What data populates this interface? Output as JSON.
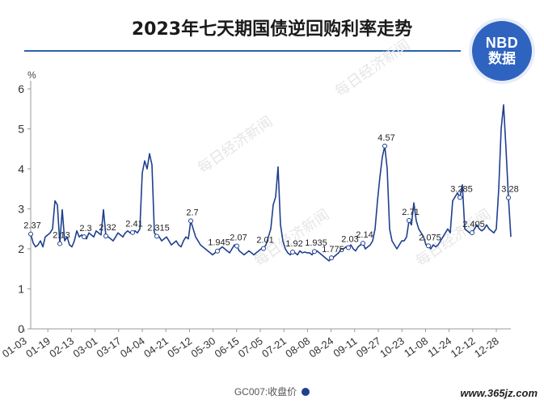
{
  "title": "2023年七天期国债逆回购利率走势",
  "logo": {
    "line1": "NBD",
    "line2": "数据"
  },
  "legend_label": "GC007:收盘价",
  "credit": "www.365jz.com",
  "watermark": "每日经济新闻",
  "colors": {
    "line": "#1f3f8f",
    "axis": "#9a9a9a",
    "title_rule": "#2a63a8"
  },
  "chart_data": {
    "type": "line",
    "title": "2023年七天期国债逆回购利率走势",
    "ylabel": "%",
    "xlabel": "",
    "ylim": [
      0,
      6
    ],
    "yticks": [
      0,
      1,
      2,
      3,
      4,
      5,
      6
    ],
    "grid": false,
    "legend_position": "bottom",
    "xticks": [
      "01-03",
      "01-19",
      "02-13",
      "03-01",
      "03-17",
      "04-04",
      "04-21",
      "05-12",
      "05-30",
      "06-15",
      "07-05",
      "07-21",
      "08-08",
      "08-24",
      "09-11",
      "09-27",
      "10-23",
      "11-08",
      "11-24",
      "12-12",
      "12-28"
    ],
    "series": [
      {
        "name": "GC007:收盘价",
        "values": [
          2.37,
          2.15,
          2.05,
          2.1,
          2.2,
          2.05,
          2.3,
          2.35,
          2.4,
          2.5,
          3.2,
          3.1,
          2.13,
          2.98,
          2.2,
          2.3,
          2.1,
          2.05,
          2.2,
          2.45,
          2.3,
          2.35,
          2.3,
          2.25,
          2.4,
          2.35,
          2.3,
          2.45,
          2.4,
          2.35,
          2.98,
          2.32,
          2.3,
          2.25,
          2.2,
          2.3,
          2.4,
          2.35,
          2.3,
          2.4,
          2.45,
          2.4,
          2.41,
          2.45,
          2.4,
          2.5,
          3.9,
          4.2,
          4.0,
          4.38,
          4.1,
          2.4,
          2.315,
          2.3,
          2.2,
          2.25,
          2.3,
          2.2,
          2.1,
          2.15,
          2.2,
          2.1,
          2.05,
          2.2,
          2.3,
          2.25,
          2.7,
          2.5,
          2.3,
          2.2,
          2.1,
          2.05,
          2.0,
          1.95,
          1.9,
          1.85,
          1.9,
          1.945,
          2.0,
          2.05,
          2.0,
          1.95,
          1.9,
          2.0,
          2.1,
          2.07,
          1.95,
          1.9,
          1.85,
          1.9,
          1.95,
          1.9,
          1.85,
          1.9,
          1.95,
          2.0,
          2.01,
          2.1,
          2.3,
          2.5,
          3.1,
          3.3,
          4.05,
          2.6,
          2.2,
          2.0,
          1.9,
          1.85,
          1.92,
          1.9,
          1.85,
          1.95,
          1.9,
          1.92,
          1.9,
          1.9,
          1.85,
          1.935,
          1.95,
          1.9,
          1.85,
          1.8,
          1.75,
          1.7,
          1.775,
          1.8,
          1.85,
          1.9,
          2.0,
          2.0,
          2.05,
          2.03,
          2.1,
          2.0,
          1.95,
          2.05,
          2.1,
          2.14,
          2.0,
          2.05,
          2.1,
          2.2,
          2.5,
          3.2,
          3.8,
          4.3,
          4.57,
          4.0,
          2.5,
          2.2,
          2.1,
          2.0,
          2.1,
          2.2,
          2.2,
          2.3,
          2.71,
          2.6,
          3.15,
          2.7,
          2.5,
          2.4,
          2.3,
          2.1,
          2.075,
          2.0,
          2.1,
          2.05,
          2.1,
          2.2,
          2.3,
          2.4,
          2.5,
          2.4,
          3.2,
          3.3,
          3.4,
          3.285,
          3.6,
          2.5,
          2.45,
          2.4,
          2.405,
          2.5,
          2.6,
          2.5,
          2.45,
          2.5,
          2.6,
          2.5,
          2.45,
          2.4,
          2.5,
          3.5,
          5.0,
          5.6,
          4.5,
          3.28,
          2.3
        ]
      }
    ],
    "annotations": [
      {
        "i": 0,
        "label": "2.37"
      },
      {
        "i": 12,
        "label": "2.13"
      },
      {
        "i": 22,
        "label": "2.3"
      },
      {
        "i": 31,
        "label": "2.32"
      },
      {
        "i": 42,
        "label": "2.41"
      },
      {
        "i": 52,
        "label": "2.315"
      },
      {
        "i": 66,
        "label": "2.7"
      },
      {
        "i": 77,
        "label": "1.945"
      },
      {
        "i": 85,
        "label": "2.07"
      },
      {
        "i": 96,
        "label": "2.01"
      },
      {
        "i": 108,
        "label": "1.92"
      },
      {
        "i": 117,
        "label": "1.935"
      },
      {
        "i": 124,
        "label": "1.775"
      },
      {
        "i": 131,
        "label": "2.03"
      },
      {
        "i": 137,
        "label": "2.14"
      },
      {
        "i": 146,
        "label": "4.57"
      },
      {
        "i": 156,
        "label": "2.71"
      },
      {
        "i": 164,
        "label": "2.075"
      },
      {
        "i": 177,
        "label": "3.285"
      },
      {
        "i": 182,
        "label": "2.405"
      },
      {
        "i": 197,
        "label": "3.28"
      }
    ]
  }
}
